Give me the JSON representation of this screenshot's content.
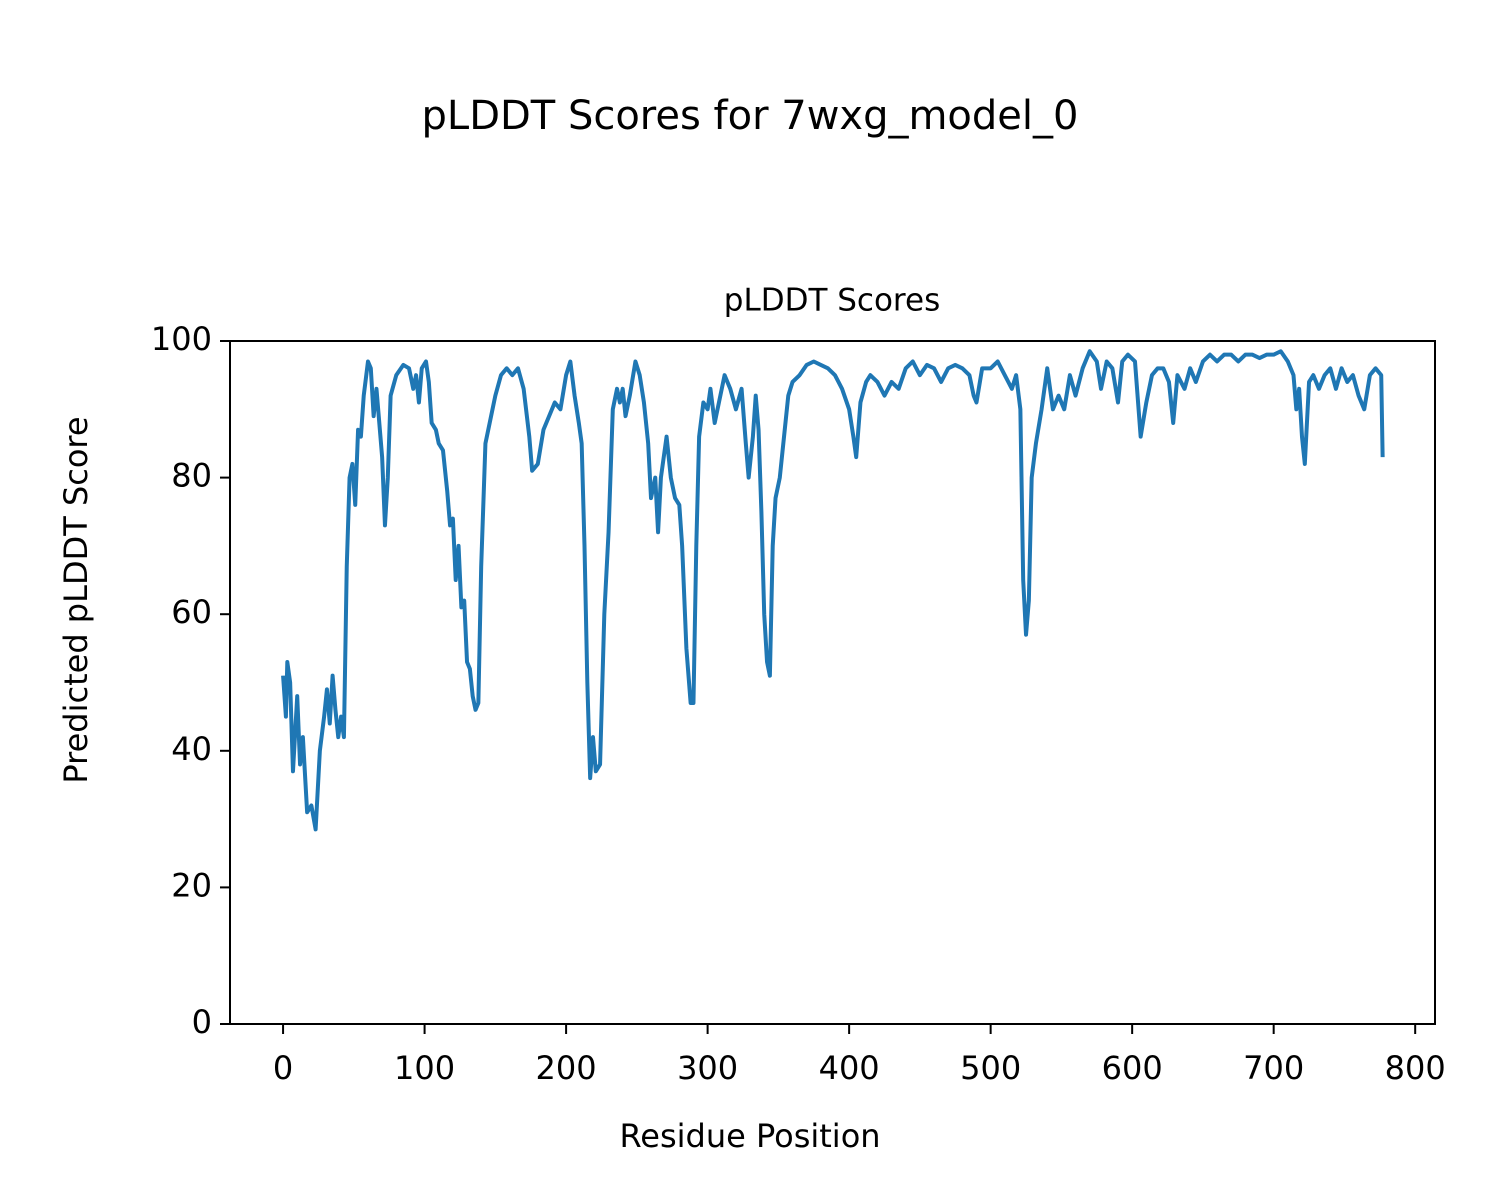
{
  "chart_data": {
    "type": "line",
    "title": "pLDDT Scores for 7wxg_model_0",
    "subtitle": "pLDDT Scores",
    "xlabel": "Residue Position",
    "ylabel": "Predicted pLDDT Score",
    "color": "#1f77b4",
    "xlim": [
      -37.5,
      814
    ],
    "ylim": [
      0,
      100
    ],
    "xticks": [
      0,
      100,
      200,
      300,
      400,
      500,
      600,
      700,
      800
    ],
    "yticks": [
      0,
      20,
      40,
      60,
      80,
      100
    ],
    "x": [
      0,
      2,
      3,
      5,
      7,
      10,
      12,
      14,
      17,
      20,
      23,
      26,
      29,
      31,
      33,
      35,
      37,
      39,
      41,
      43,
      45,
      47,
      49,
      51,
      53,
      55,
      57,
      60,
      62,
      64,
      66,
      68,
      70,
      72,
      74,
      76,
      80,
      85,
      89,
      92,
      94,
      96,
      98,
      101,
      103,
      105,
      108,
      110,
      113,
      116,
      118,
      120,
      122,
      124,
      126,
      128,
      130,
      132,
      134,
      136,
      138,
      140,
      143,
      146,
      150,
      154,
      158,
      162,
      166,
      170,
      174,
      176,
      180,
      184,
      188,
      192,
      196,
      200,
      203,
      206,
      209,
      211,
      213,
      215,
      217,
      219,
      221,
      224,
      227,
      230,
      233,
      236,
      238,
      240,
      242,
      245,
      249,
      252,
      255,
      258,
      260,
      263,
      265,
      267,
      271,
      274,
      277,
      280,
      282,
      285,
      288,
      290,
      292,
      294,
      297,
      300,
      302,
      305,
      308,
      312,
      316,
      320,
      324,
      327,
      329,
      332,
      334,
      336,
      338,
      340,
      342,
      344,
      346,
      348,
      351,
      354,
      357,
      360,
      365,
      370,
      375,
      380,
      385,
      390,
      395,
      400,
      403,
      405,
      408,
      412,
      415,
      420,
      425,
      430,
      435,
      440,
      445,
      450,
      455,
      460,
      465,
      470,
      475,
      480,
      485,
      488,
      490,
      494,
      500,
      505,
      510,
      515,
      518,
      521,
      523,
      525,
      527,
      529,
      532,
      536,
      540,
      544,
      548,
      552,
      556,
      560,
      565,
      570,
      575,
      578,
      582,
      586,
      590,
      593,
      597,
      602,
      606,
      610,
      614,
      618,
      622,
      626,
      629,
      632,
      637,
      641,
      645,
      650,
      655,
      660,
      665,
      670,
      675,
      680,
      685,
      690,
      695,
      700,
      705,
      710,
      714,
      716,
      718,
      720,
      722,
      725,
      728,
      732,
      736,
      740,
      744,
      748,
      752,
      756,
      760,
      764,
      768,
      772,
      776,
      777
    ],
    "values": [
      51,
      45,
      53,
      50,
      37,
      48,
      38,
      42,
      31,
      32,
      28.5,
      40,
      45,
      49,
      44,
      51,
      46,
      42,
      45,
      42,
      67,
      80,
      82,
      76,
      87,
      86,
      92,
      97,
      96,
      89,
      93,
      88,
      83,
      73,
      80,
      92,
      95,
      96.5,
      96,
      93,
      95,
      91,
      96,
      97,
      94,
      88,
      87,
      85,
      84,
      78,
      73,
      74,
      65,
      70,
      61,
      62,
      53,
      52,
      48,
      46,
      47,
      67,
      85,
      88,
      92,
      95,
      96,
      95,
      96,
      93,
      86,
      81,
      82,
      87,
      89,
      91,
      90,
      95,
      97,
      92,
      88,
      85,
      70,
      50,
      36,
      42,
      37,
      38,
      60,
      72,
      90,
      93,
      91,
      93,
      89,
      92,
      97,
      95,
      91,
      85,
      77,
      80,
      72,
      80,
      86,
      80,
      77,
      76,
      70,
      55,
      47,
      47,
      70,
      86,
      91,
      90,
      93,
      88,
      91,
      95,
      93,
      90,
      93,
      85,
      80,
      86,
      92,
      87,
      75,
      60,
      53,
      51,
      70,
      77,
      80,
      86,
      92,
      94,
      95,
      96.5,
      97,
      96.5,
      96,
      95,
      93,
      90,
      86,
      83,
      91,
      94,
      95,
      94,
      92,
      94,
      93,
      96,
      97,
      95,
      96.5,
      96,
      94,
      96,
      96.5,
      96,
      95,
      92,
      91,
      96,
      96,
      97,
      95,
      93,
      95,
      90,
      65,
      57,
      62,
      80,
      85,
      90,
      96,
      90,
      92,
      90,
      95,
      92,
      96,
      98.5,
      97,
      93,
      97,
      96,
      91,
      97,
      98,
      97,
      86,
      91,
      95,
      96,
      96,
      94,
      88,
      95,
      93,
      96,
      94,
      97,
      98,
      97,
      98,
      98,
      97,
      98,
      98,
      97.5,
      98,
      98,
      98.5,
      97,
      95,
      90,
      93,
      86,
      82,
      94,
      95,
      93,
      95,
      96,
      93,
      96,
      94,
      95,
      92,
      90,
      95,
      96,
      95,
      83
    ]
  }
}
